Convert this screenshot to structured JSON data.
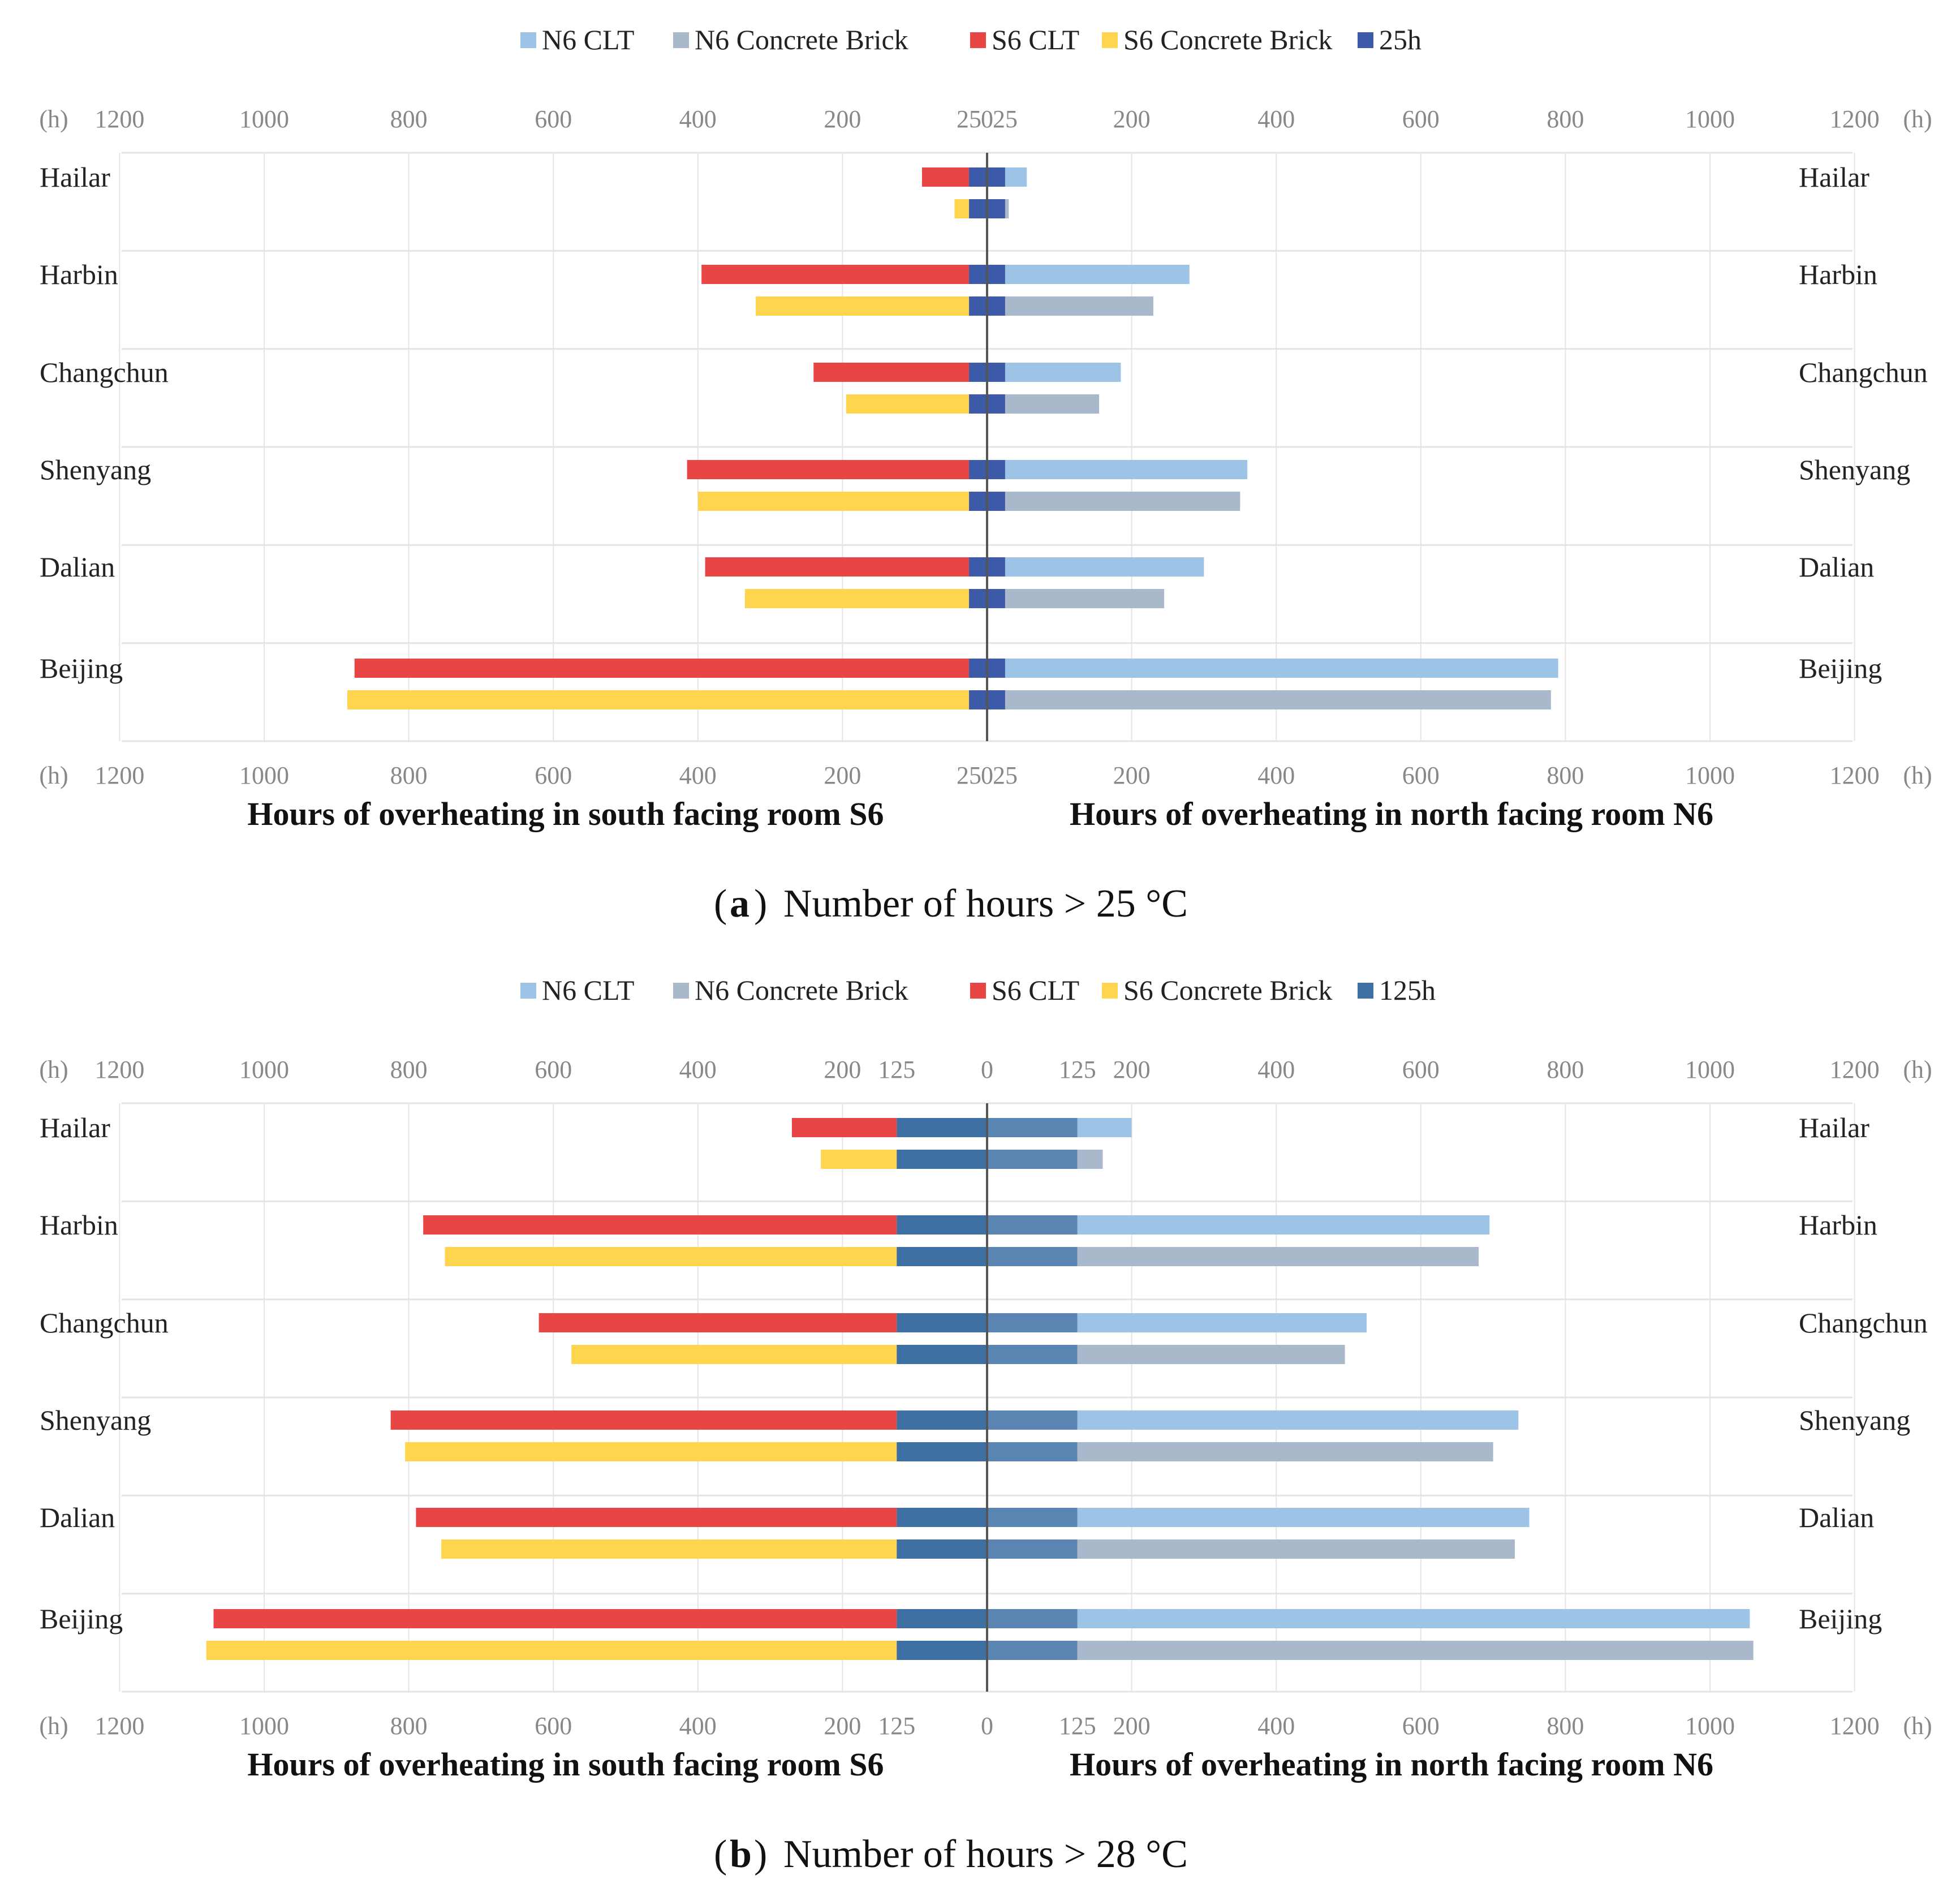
{
  "chart_data": [
    {
      "type": "bar",
      "orientation": "horizontal-butterfly",
      "panel_letter": "a",
      "caption": "Number of hours > 25 °C",
      "categories": [
        "Hailar",
        "Harbin",
        "Changchun",
        "Shenyang",
        "Dalian",
        "Beijing"
      ],
      "threshold": 25,
      "legend": [
        {
          "label": "N6 CLT",
          "color": "#9dc3e6"
        },
        {
          "label": "N6 Concrete Brick",
          "color": "#aab8cb"
        },
        {
          "label": "S6 CLT",
          "color": "#e84545"
        },
        {
          "label": "S6 Concrete Brick",
          "color": "#ffd54f"
        },
        {
          "label": "25h",
          "color": "#3d5aa8"
        }
      ],
      "left_axis": {
        "label": "Hours of overheating in south facing room S6",
        "ticks": [
          "1200",
          "1000",
          "800",
          "600",
          "400",
          "200",
          "25",
          "0"
        ],
        "unit": "(h)"
      },
      "right_axis": {
        "label": "Hours of overheating in north facing room N6",
        "ticks": [
          "25",
          "200",
          "400",
          "600",
          "800",
          "1000",
          "1200"
        ],
        "unit": "(h)"
      },
      "xlim": [
        0,
        1200
      ],
      "series": [
        {
          "name": "S6 CLT",
          "side": "left",
          "values": [
            90,
            395,
            240,
            415,
            390,
            875
          ]
        },
        {
          "name": "S6 Concrete Brick",
          "side": "left",
          "values": [
            45,
            320,
            195,
            400,
            335,
            885
          ]
        },
        {
          "name": "N6 CLT",
          "side": "right",
          "values": [
            55,
            280,
            185,
            360,
            300,
            790
          ]
        },
        {
          "name": "N6 Concrete Brick",
          "side": "right",
          "values": [
            30,
            230,
            155,
            350,
            245,
            780
          ]
        }
      ]
    },
    {
      "type": "bar",
      "orientation": "horizontal-butterfly",
      "panel_letter": "b",
      "caption": "Number of hours > 28 °C",
      "categories": [
        "Hailar",
        "Harbin",
        "Changchun",
        "Shenyang",
        "Dalian",
        "Beijing"
      ],
      "threshold": 125,
      "legend": [
        {
          "label": "N6 CLT",
          "color": "#9dc3e6"
        },
        {
          "label": "N6 Concrete Brick",
          "color": "#aab8cb"
        },
        {
          "label": "S6 CLT",
          "color": "#e84545"
        },
        {
          "label": "S6 Concrete Brick",
          "color": "#ffd54f"
        },
        {
          "label": "125h",
          "color": "#3d6fa3"
        }
      ],
      "left_axis": {
        "label": "Hours of overheating in south facing room S6",
        "ticks": [
          "1200",
          "1000",
          "800",
          "600",
          "400",
          "200",
          "125",
          "0"
        ],
        "unit": "(h)"
      },
      "right_axis": {
        "label": "Hours of overheating in north facing room N6",
        "ticks": [
          "125",
          "200",
          "400",
          "600",
          "800",
          "1000",
          "1200"
        ],
        "unit": "(h)"
      },
      "xlim": [
        0,
        1200
      ],
      "series": [
        {
          "name": "S6 CLT",
          "side": "left",
          "values": [
            270,
            780,
            620,
            825,
            790,
            1070
          ]
        },
        {
          "name": "S6 Concrete Brick",
          "side": "left",
          "values": [
            230,
            750,
            575,
            805,
            755,
            1080
          ]
        },
        {
          "name": "N6 CLT",
          "side": "right",
          "values": [
            200,
            695,
            525,
            735,
            750,
            1055
          ]
        },
        {
          "name": "N6 Concrete Brick",
          "side": "right",
          "values": [
            160,
            680,
            495,
            700,
            730,
            1060
          ]
        }
      ]
    }
  ]
}
